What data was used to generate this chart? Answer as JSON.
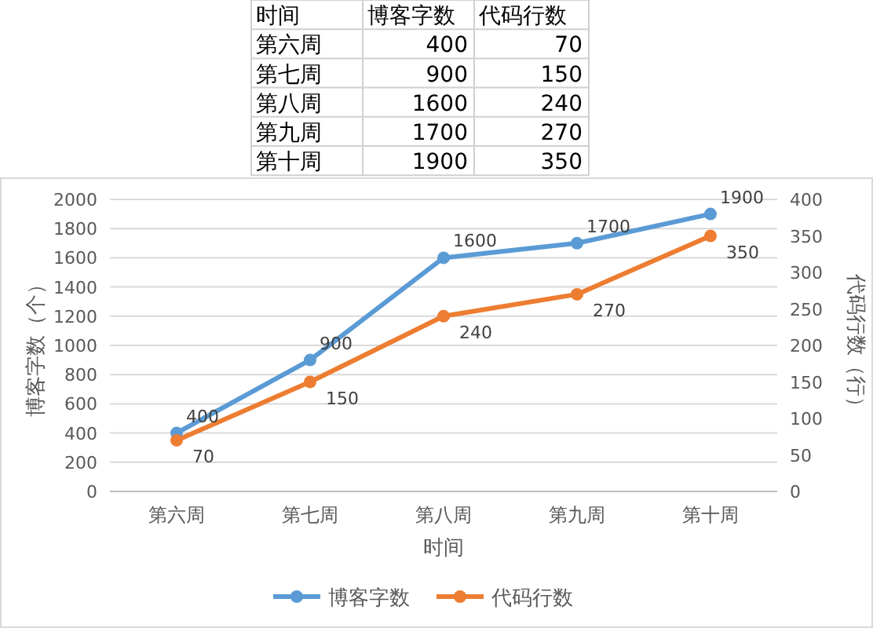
{
  "chart_data": [
    {
      "type": "other",
      "annotations": [
        "时间",
        "博客字数",
        "代码行数",
        "第六周",
        "400",
        "70",
        "第七周",
        "900",
        "150",
        "第八周",
        "1600",
        "240",
        "第九周",
        "1700",
        "270",
        "第十周",
        "1900",
        "350"
      ]
    },
    {
      "type": "line",
      "xlabel": "时间",
      "ylabel": "博客字数（个）",
      "y2label": "代码行数（行）",
      "categories": [
        "第六周",
        "第七周",
        "第八周",
        "第九周",
        "第十周"
      ],
      "series": [
        {
          "name": "博客字数",
          "color": "#5b9bd5",
          "values": [
            400,
            900,
            1600,
            1700,
            1900
          ]
        },
        {
          "name": "代码行数",
          "color": "#ed7d31",
          "values": [
            70,
            150,
            240,
            270,
            350
          ],
          "axis": "y2"
        }
      ],
      "ylim": [
        0,
        2000
      ],
      "yticks": [
        0,
        200,
        400,
        600,
        800,
        1000,
        1200,
        1400,
        1600,
        1800,
        2000
      ],
      "y2lim": [
        0,
        400
      ],
      "y2ticks": [
        0,
        50,
        100,
        150,
        200,
        250,
        300,
        350,
        400
      ],
      "grid": "y",
      "legend": "bottom",
      "marker": "circle",
      "line_style": "solid",
      "data_labels": true
    }
  ]
}
